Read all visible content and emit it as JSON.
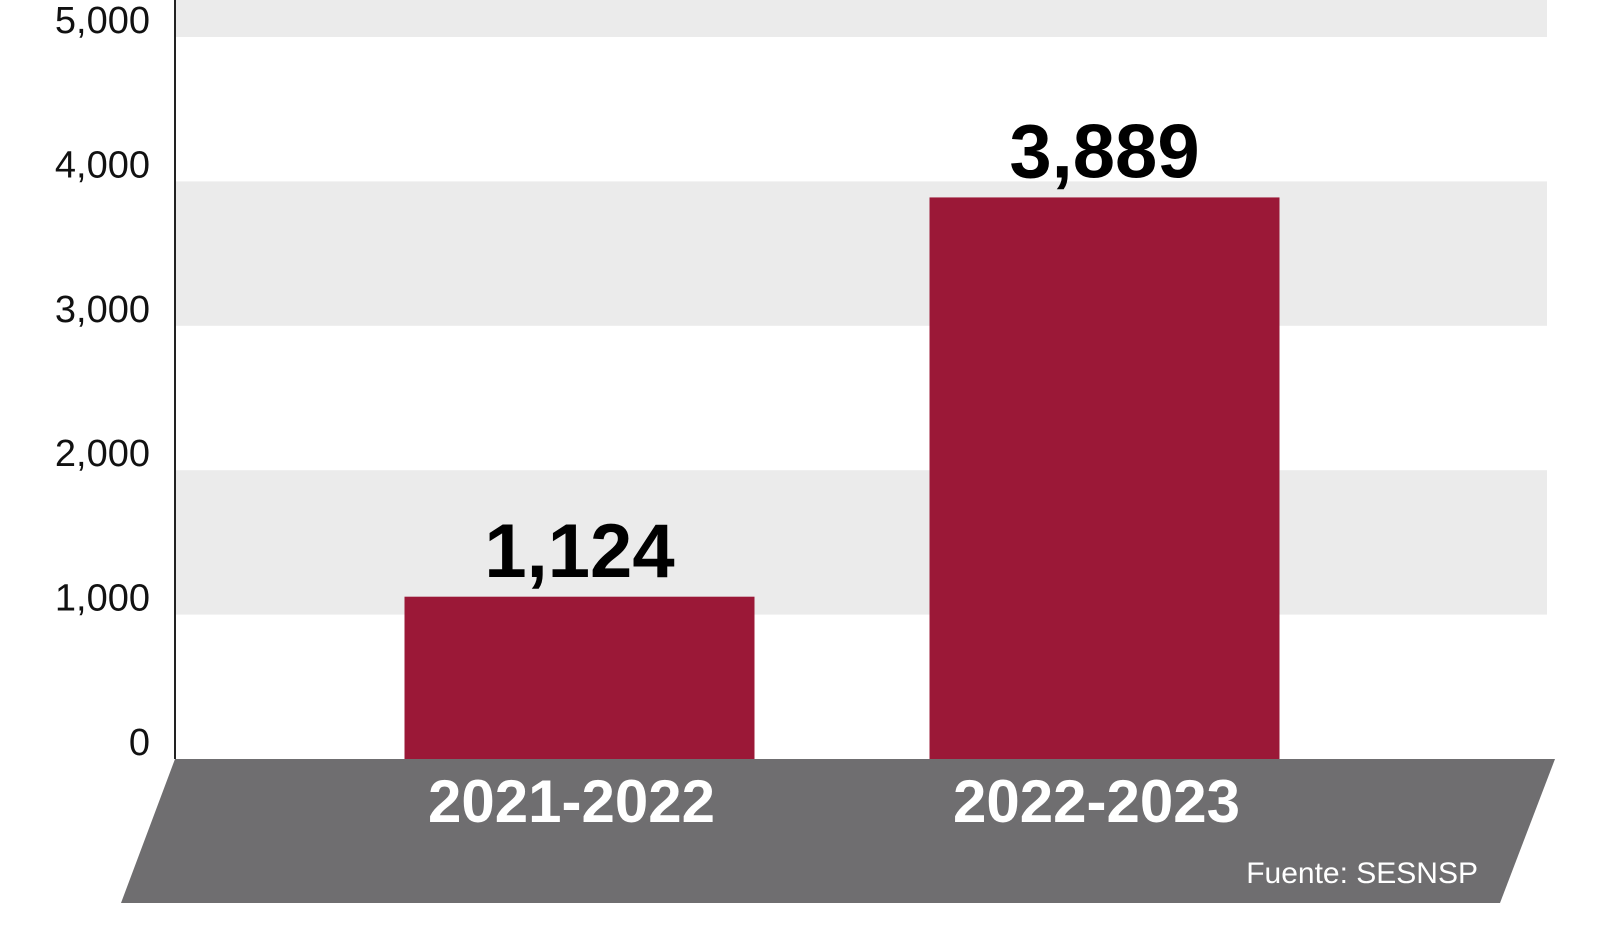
{
  "chart_data": {
    "type": "bar",
    "categories": [
      "2021-2022",
      "2022-2023"
    ],
    "values": [
      1124,
      3889
    ],
    "value_labels": [
      "1,124",
      "3,889"
    ],
    "color": "#9b1837",
    "ylim": [
      0,
      5000
    ],
    "yticks": [
      0,
      {
        "value": 1000,
        "label": "1,000"
      },
      {
        "value": 2000,
        "label": "2,000"
      },
      {
        "value": 3000,
        "label": "3,000"
      },
      {
        "value": 4000,
        "label": "4,000"
      },
      {
        "value": 5000,
        "label": "5,000"
      }
    ],
    "source": "Fuente: SESNSP"
  }
}
